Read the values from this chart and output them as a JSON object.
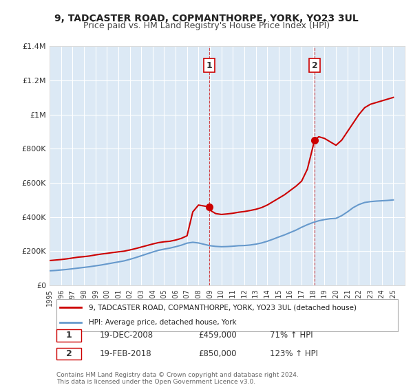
{
  "title": "9, TADCASTER ROAD, COPMANTHORPE, YORK, YO23 3UL",
  "subtitle": "Price paid vs. HM Land Registry's House Price Index (HPI)",
  "title_fontsize": 10,
  "subtitle_fontsize": 9,
  "background_color": "#ffffff",
  "plot_bg_color": "#dce9f5",
  "grid_color": "#ffffff",
  "ylabel_color": "#333333",
  "point1_date": "19-DEC-2008",
  "point1_price": 459000,
  "point1_hpi": "71%",
  "point2_date": "19-FEB-2018",
  "point2_price": 850000,
  "point2_hpi": "123%",
  "red_line_color": "#cc0000",
  "blue_line_color": "#6699cc",
  "point_marker_color": "#cc0000",
  "legend_line1": "9, TADCASTER ROAD, COPMANTHORPE, YORK, YO23 3UL (detached house)",
  "legend_line2": "HPI: Average price, detached house, York",
  "footnote": "Contains HM Land Registry data © Crown copyright and database right 2024.\nThis data is licensed under the Open Government Licence v3.0.",
  "ylim": [
    0,
    1400000
  ],
  "xlim_start": 1995,
  "xlim_end": 2026,
  "red_x": [
    1995.0,
    1995.5,
    1996.0,
    1996.5,
    1997.0,
    1997.5,
    1998.0,
    1998.5,
    1999.0,
    1999.5,
    2000.0,
    2000.5,
    2001.0,
    2001.5,
    2002.0,
    2002.5,
    2003.0,
    2003.5,
    2004.0,
    2004.5,
    2005.0,
    2005.5,
    2006.0,
    2006.5,
    2007.0,
    2007.5,
    2008.0,
    2008.96,
    2009.0,
    2009.5,
    2010.0,
    2010.5,
    2011.0,
    2011.5,
    2012.0,
    2012.5,
    2013.0,
    2013.5,
    2014.0,
    2014.5,
    2015.0,
    2015.5,
    2016.0,
    2016.5,
    2017.0,
    2017.5,
    2018.13,
    2018.5,
    2019.0,
    2019.5,
    2020.0,
    2020.5,
    2021.0,
    2021.5,
    2022.0,
    2022.5,
    2023.0,
    2023.5,
    2024.0,
    2024.5,
    2025.0
  ],
  "red_y": [
    145000,
    148000,
    151000,
    155000,
    160000,
    165000,
    168000,
    172000,
    178000,
    183000,
    187000,
    192000,
    196000,
    200000,
    207000,
    215000,
    224000,
    233000,
    242000,
    250000,
    255000,
    258000,
    265000,
    275000,
    290000,
    430000,
    470000,
    459000,
    440000,
    420000,
    415000,
    418000,
    422000,
    428000,
    432000,
    438000,
    445000,
    455000,
    470000,
    490000,
    510000,
    530000,
    555000,
    580000,
    610000,
    680000,
    850000,
    870000,
    860000,
    840000,
    820000,
    850000,
    900000,
    950000,
    1000000,
    1040000,
    1060000,
    1070000,
    1080000,
    1090000,
    1100000
  ],
  "blue_x": [
    1995.0,
    1995.5,
    1996.0,
    1996.5,
    1997.0,
    1997.5,
    1998.0,
    1998.5,
    1999.0,
    1999.5,
    2000.0,
    2000.5,
    2001.0,
    2001.5,
    2002.0,
    2002.5,
    2003.0,
    2003.5,
    2004.0,
    2004.5,
    2005.0,
    2005.5,
    2006.0,
    2006.5,
    2007.0,
    2007.5,
    2008.0,
    2008.5,
    2009.0,
    2009.5,
    2010.0,
    2010.5,
    2011.0,
    2011.5,
    2012.0,
    2012.5,
    2013.0,
    2013.5,
    2014.0,
    2014.5,
    2015.0,
    2015.5,
    2016.0,
    2016.5,
    2017.0,
    2017.5,
    2018.0,
    2018.5,
    2019.0,
    2019.5,
    2020.0,
    2020.5,
    2021.0,
    2021.5,
    2022.0,
    2022.5,
    2023.0,
    2023.5,
    2024.0,
    2024.5,
    2025.0
  ],
  "blue_y": [
    85000,
    87000,
    90000,
    93000,
    97000,
    101000,
    105000,
    109000,
    114000,
    119000,
    125000,
    131000,
    137000,
    143000,
    152000,
    162000,
    173000,
    184000,
    195000,
    205000,
    212000,
    218000,
    226000,
    235000,
    247000,
    252000,
    248000,
    240000,
    232000,
    228000,
    226000,
    227000,
    229000,
    232000,
    233000,
    236000,
    241000,
    248000,
    258000,
    270000,
    283000,
    295000,
    309000,
    323000,
    340000,
    355000,
    368000,
    378000,
    385000,
    390000,
    392000,
    408000,
    430000,
    455000,
    473000,
    485000,
    490000,
    493000,
    495000,
    497000,
    500000
  ],
  "point1_x": 2008.96,
  "point1_y": 459000,
  "point2_x": 2018.13,
  "point2_y": 850000,
  "xticks": [
    1995,
    1996,
    1997,
    1998,
    1999,
    2000,
    2001,
    2002,
    2003,
    2004,
    2005,
    2006,
    2007,
    2008,
    2009,
    2010,
    2011,
    2012,
    2013,
    2014,
    2015,
    2016,
    2017,
    2018,
    2019,
    2020,
    2021,
    2022,
    2023,
    2024,
    2025
  ],
  "yticks": [
    0,
    200000,
    400000,
    600000,
    800000,
    1000000,
    1200000,
    1400000
  ],
  "ytick_labels": [
    "£0",
    "£200K",
    "£400K",
    "£600K",
    "£800K",
    "£1M",
    "£1.2M",
    "£1.4M"
  ]
}
